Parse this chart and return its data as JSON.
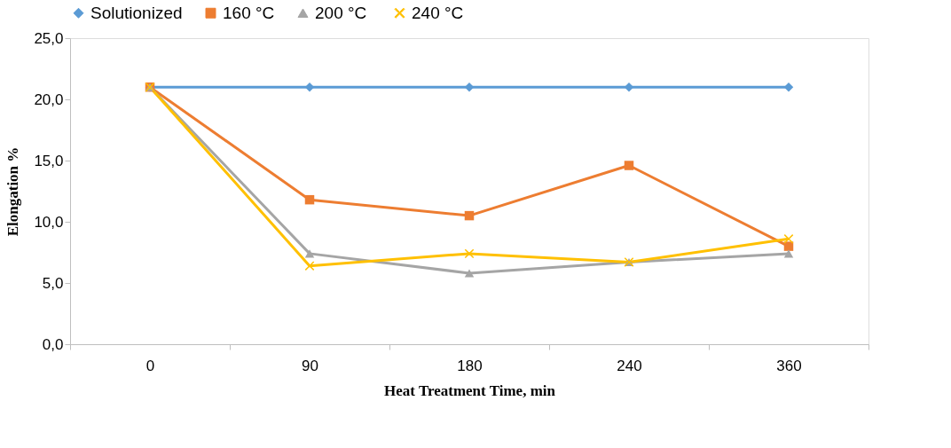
{
  "chart_data": {
    "type": "line",
    "categories": [
      "0",
      "90",
      "180",
      "240",
      "360"
    ],
    "xlabel": "Heat Treatment Time, min",
    "ylabel": "Elongation %",
    "ylim": [
      0,
      25
    ],
    "yticks": [
      {
        "value": 0,
        "label": "0,0"
      },
      {
        "value": 5,
        "label": "5,0"
      },
      {
        "value": 10,
        "label": "10,0"
      },
      {
        "value": 15,
        "label": "15,0"
      },
      {
        "value": 20,
        "label": "20,0"
      },
      {
        "value": 25,
        "label": "25,0"
      }
    ],
    "grid": false,
    "legend": "top",
    "line_style": "solid",
    "series": [
      {
        "name": "Solutionized",
        "color": "#5b9bd5",
        "marker": "diamond",
        "values": [
          21.0,
          21.0,
          21.0,
          21.0,
          21.0
        ]
      },
      {
        "name": "160 °C",
        "color": "#ed7d31",
        "marker": "square",
        "values": [
          21.0,
          11.8,
          10.5,
          14.6,
          8.0
        ]
      },
      {
        "name": "200  °C",
        "color": "#a5a5a5",
        "marker": "triangle",
        "values": [
          21.0,
          7.4,
          5.8,
          6.7,
          7.4
        ]
      },
      {
        "name": "240  °C",
        "color": "#ffc000",
        "marker": "cross",
        "values": [
          21.0,
          6.4,
          7.4,
          6.7,
          8.6
        ]
      }
    ]
  }
}
